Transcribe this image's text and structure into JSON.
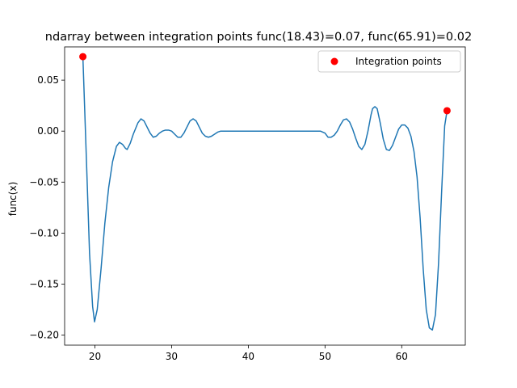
{
  "chart_data": {
    "type": "line",
    "title": "ndarray between integration points func(18.43)=0.07, func(65.91)=0.02",
    "xlabel": "",
    "ylabel": "func(x)",
    "xlim": [
      16.05,
      68.29
    ],
    "ylim": [
      -0.2099,
      0.0826
    ],
    "xticks": [
      20,
      30,
      40,
      50,
      60
    ],
    "yticks": [
      0.05,
      0.0,
      -0.05,
      -0.1,
      -0.15,
      -0.2
    ],
    "ytick_labels": [
      "0.05",
      "0.00",
      "−0.05",
      "−0.10",
      "−0.15",
      "−0.20"
    ],
    "grid": false,
    "legend_position": "top-right",
    "series": [
      {
        "name": "",
        "kind": "line",
        "color": "#1f77b4",
        "x": [
          18.43,
          18.9,
          19.3,
          19.7,
          19.95,
          20.3,
          20.8,
          21.3,
          21.8,
          22.3,
          22.8,
          23.2,
          23.6,
          24.0,
          24.2,
          24.6,
          25.0,
          25.6,
          26.0,
          26.4,
          26.8,
          27.2,
          27.6,
          28.0,
          28.4,
          28.8,
          29.2,
          29.6,
          30.0,
          30.4,
          30.8,
          31.2,
          31.6,
          32.0,
          32.4,
          32.8,
          33.2,
          33.6,
          34.0,
          34.4,
          34.8,
          35.2,
          35.6,
          36.0,
          36.4,
          36.8,
          37.2,
          38.0,
          40.0,
          42.0,
          44.0,
          46.0,
          47.5,
          48.2,
          48.8,
          49.4,
          50.0,
          50.4,
          50.8,
          51.2,
          51.6,
          52.0,
          52.4,
          52.8,
          53.2,
          53.6,
          54.0,
          54.4,
          54.8,
          55.2,
          55.6,
          56.0,
          56.2,
          56.5,
          56.8,
          57.2,
          57.6,
          58.0,
          58.4,
          58.8,
          59.2,
          59.6,
          60.0,
          60.4,
          60.8,
          61.2,
          61.6,
          62.0,
          62.4,
          62.8,
          63.2,
          63.6,
          64.0,
          64.4,
          64.8,
          65.2,
          65.6,
          65.91
        ],
        "y": [
          0.073,
          -0.03,
          -0.12,
          -0.172,
          -0.187,
          -0.175,
          -0.135,
          -0.09,
          -0.055,
          -0.03,
          -0.015,
          -0.011,
          -0.013,
          -0.017,
          -0.018,
          -0.012,
          -0.003,
          0.008,
          0.012,
          0.01,
          0.004,
          -0.002,
          -0.006,
          -0.005,
          -0.002,
          0.0,
          0.001,
          0.001,
          0.0,
          -0.003,
          -0.006,
          -0.006,
          -0.002,
          0.004,
          0.01,
          0.012,
          0.01,
          0.004,
          -0.002,
          -0.005,
          -0.006,
          -0.005,
          -0.003,
          -0.001,
          0.0,
          0.0,
          0.0,
          0.0,
          0.0,
          0.0,
          0.0,
          0.0,
          0.0,
          0.0,
          0.0,
          0.0,
          -0.002,
          -0.006,
          -0.006,
          -0.004,
          0.0,
          0.006,
          0.011,
          0.012,
          0.009,
          0.002,
          -0.007,
          -0.015,
          -0.018,
          -0.013,
          0.0,
          0.016,
          0.022,
          0.024,
          0.022,
          0.008,
          -0.008,
          -0.018,
          -0.019,
          -0.014,
          -0.006,
          0.002,
          0.006,
          0.006,
          0.003,
          -0.005,
          -0.02,
          -0.045,
          -0.085,
          -0.135,
          -0.175,
          -0.193,
          -0.195,
          -0.18,
          -0.13,
          -0.06,
          0.005,
          0.02
        ]
      },
      {
        "name": "Integration points",
        "kind": "scatter",
        "color": "#ff0000",
        "x": [
          18.43,
          65.91
        ],
        "y": [
          0.073,
          0.02
        ]
      }
    ]
  }
}
